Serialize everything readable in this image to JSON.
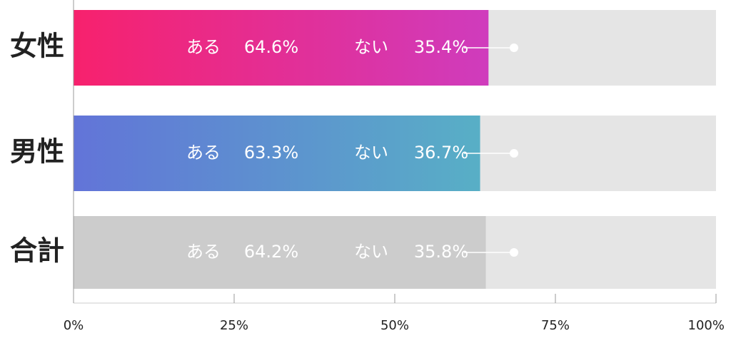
{
  "chart_data": {
    "type": "stacked_bar_h",
    "categories": [
      "女性",
      "男性",
      "合計"
    ],
    "series": [
      {
        "name": "ある",
        "values": [
          64.6,
          63.3,
          64.2
        ],
        "value_labels": [
          "64.6%",
          "63.3%",
          "64.2%"
        ],
        "colors": [
          [
            "#f7216d",
            "#cf3cbd"
          ],
          [
            "#6274d8",
            "#58afc6"
          ],
          [
            "#cccccc",
            "#cccccc"
          ]
        ]
      },
      {
        "name": "ない",
        "values": [
          35.4,
          36.7,
          35.8
        ],
        "value_labels": [
          "35.4%",
          "36.7%",
          "35.8%"
        ],
        "color": "#e5e5e5"
      }
    ],
    "xlim": [
      0,
      100
    ],
    "xticks": [
      {
        "value": 0,
        "label": "0%"
      },
      {
        "value": 25,
        "label": "25%"
      },
      {
        "value": 50,
        "label": "50%"
      },
      {
        "value": 75,
        "label": "75%"
      },
      {
        "value": 100,
        "label": "100%"
      }
    ]
  }
}
